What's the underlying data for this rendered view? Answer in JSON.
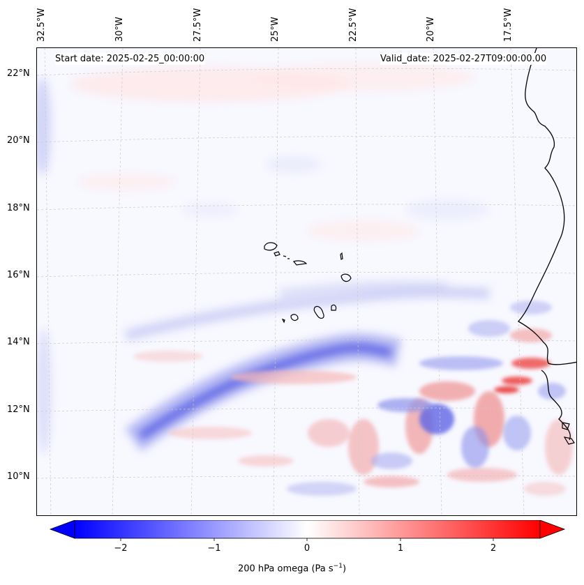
{
  "map": {
    "start_date": "Start date: 2025-02-25_00:00:00",
    "valid_date": "Valid_date: 2025-02-27T09:00:00.00",
    "lon_labels": [
      "32.5°W",
      "30°W",
      "27.5°W",
      "25°W",
      "22.5°W",
      "20°W",
      "17.5°W"
    ],
    "lat_labels": [
      "22°N",
      "20°N",
      "18°N",
      "16°N",
      "14°N",
      "12°N",
      "10°N"
    ]
  },
  "colorbar": {
    "ticks": [
      "−2",
      "−1",
      "0",
      "1",
      "2"
    ],
    "label": "200 hPa omega (Pa s",
    "label_sup": "−1",
    "label_close": ")",
    "min": -2.5,
    "max": 2.5,
    "colors": {
      "negative": "#0000ff",
      "zero": "#ffffff",
      "positive": "#ff0000"
    }
  }
}
